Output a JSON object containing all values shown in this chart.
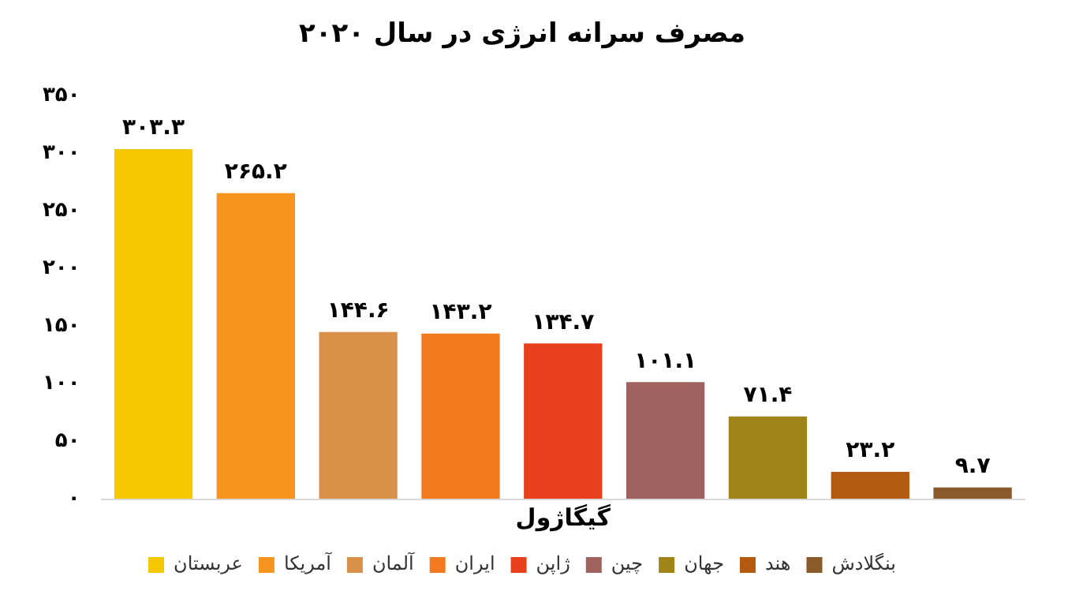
{
  "chart_data": {
    "type": "bar",
    "title": "مصرف سرانه انرژی در سال ۲۰۲۰",
    "xlabel": "گیگاژول",
    "categories": [
      null,
      null,
      null,
      null,
      null,
      null,
      null,
      null,
      null
    ],
    "series": [
      {
        "name": "عربستان",
        "color": "#f5c800",
        "values": [
          303.3,
          null,
          null,
          null,
          null,
          null,
          null,
          null,
          null
        ],
        "value_labels": [
          "۳۰۳.۳",
          null,
          null,
          null,
          null,
          null,
          null,
          null,
          null
        ]
      },
      {
        "name": "آمریکا",
        "color": "#f7941d",
        "values": [
          null,
          265.2,
          null,
          null,
          null,
          null,
          null,
          null,
          null
        ],
        "value_labels": [
          null,
          "۲۶۵.۲",
          null,
          null,
          null,
          null,
          null,
          null,
          null
        ]
      },
      {
        "name": "آلمان",
        "color": "#d9914a",
        "values": [
          null,
          null,
          144.6,
          null,
          null,
          null,
          null,
          null,
          null
        ],
        "value_labels": [
          null,
          null,
          "۱۴۴.۶",
          null,
          null,
          null,
          null,
          null,
          null
        ]
      },
      {
        "name": "ایران",
        "color": "#f47a20",
        "values": [
          null,
          null,
          null,
          143.2,
          null,
          null,
          null,
          null,
          null
        ],
        "value_labels": [
          null,
          null,
          null,
          "۱۴۳.۲",
          null,
          null,
          null,
          null,
          null
        ]
      },
      {
        "name": "ژاپن",
        "color": "#e8401c",
        "values": [
          null,
          null,
          null,
          null,
          134.7,
          null,
          null,
          null,
          null
        ],
        "value_labels": [
          null,
          null,
          null,
          null,
          "۱۳۴.۷",
          null,
          null,
          null,
          null
        ]
      },
      {
        "name": "چین",
        "color": "#a0625f",
        "values": [
          null,
          null,
          null,
          null,
          null,
          101.1,
          null,
          null,
          null
        ],
        "value_labels": [
          null,
          null,
          null,
          null,
          null,
          "۱۰۱.۱",
          null,
          null,
          null
        ]
      },
      {
        "name": "جهان",
        "color": "#a08418",
        "values": [
          null,
          null,
          null,
          null,
          null,
          null,
          71.4,
          null,
          null
        ],
        "value_labels": [
          null,
          null,
          null,
          null,
          null,
          null,
          "۷۱.۴",
          null,
          null
        ]
      },
      {
        "name": "هند",
        "color": "#b35a10",
        "values": [
          null,
          null,
          null,
          null,
          null,
          null,
          null,
          23.2,
          null
        ],
        "value_labels": [
          null,
          null,
          null,
          null,
          null,
          null,
          null,
          "۲۳.۲",
          null
        ]
      },
      {
        "name": "بنگلادش",
        "color": "#8b5a2b",
        "values": [
          null,
          null,
          null,
          null,
          null,
          null,
          null,
          null,
          9.7
        ],
        "value_labels": [
          null,
          null,
          null,
          null,
          null,
          null,
          null,
          null,
          "۹.۷"
        ]
      }
    ],
    "ylim": [
      0,
      350
    ],
    "yticks": [
      {
        "value": 0,
        "label": "۰"
      },
      {
        "value": 50,
        "label": "۵۰"
      },
      {
        "value": 100,
        "label": "۱۰۰"
      },
      {
        "value": 150,
        "label": "۱۵۰"
      },
      {
        "value": 200,
        "label": "۲۰۰"
      },
      {
        "value": 250,
        "label": "۲۵۰"
      },
      {
        "value": 300,
        "label": "۳۰۰"
      },
      {
        "value": 350,
        "label": "۳۵۰"
      }
    ],
    "tick_labels": "y",
    "grid": false,
    "legend": "bottom"
  }
}
